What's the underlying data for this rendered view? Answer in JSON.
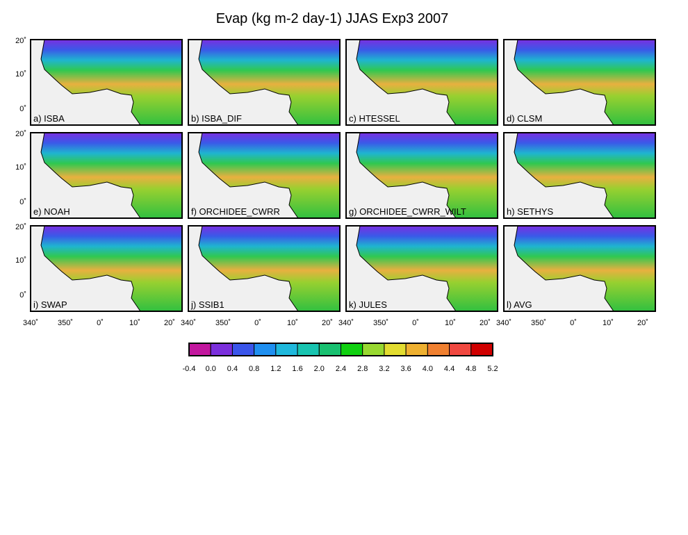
{
  "title": "Evap (kg m-2 day-1) JJAS Exp3 2007",
  "panels": [
    {
      "label": "a) ISBA"
    },
    {
      "label": "b) ISBA_DIF"
    },
    {
      "label": "c) HTESSEL"
    },
    {
      "label": "d) CLSM"
    },
    {
      "label": "e) NOAH"
    },
    {
      "label": "f) ORCHIDEE_CWRR"
    },
    {
      "label": "g) ORCHIDEE_CWRR_WILT"
    },
    {
      "label": "h) SETHYS"
    },
    {
      "label": "i) SWAP"
    },
    {
      "label": "j) SSIB1"
    },
    {
      "label": "k) JULES"
    },
    {
      "label": "l) AVG"
    }
  ],
  "lat_labels": [
    "20˚",
    "10˚",
    "0˚"
  ],
  "lon_labels": [
    "340˚",
    "350˚",
    "0˚",
    "10˚",
    "20˚"
  ],
  "colorbar": {
    "colors": [
      "#c2179e",
      "#7b2fdc",
      "#3a55ea",
      "#1f8ff0",
      "#1fb8dc",
      "#18c4b0",
      "#18c070",
      "#10d010",
      "#98d830",
      "#e2dc30",
      "#eeb030",
      "#f08030",
      "#f04840",
      "#d00000",
      "#a82020"
    ],
    "ticks": [
      -0.4,
      {
        "value": 0,
        "label": "0.0"
      },
      0.4,
      0.8,
      1.2,
      1.6,
      {
        "value": 2,
        "label": "2.0"
      },
      2.4,
      2.8,
      3.2,
      3.6,
      {
        "value": 4,
        "label": "4.0"
      },
      4.4,
      4.8,
      5.2
    ]
  }
}
